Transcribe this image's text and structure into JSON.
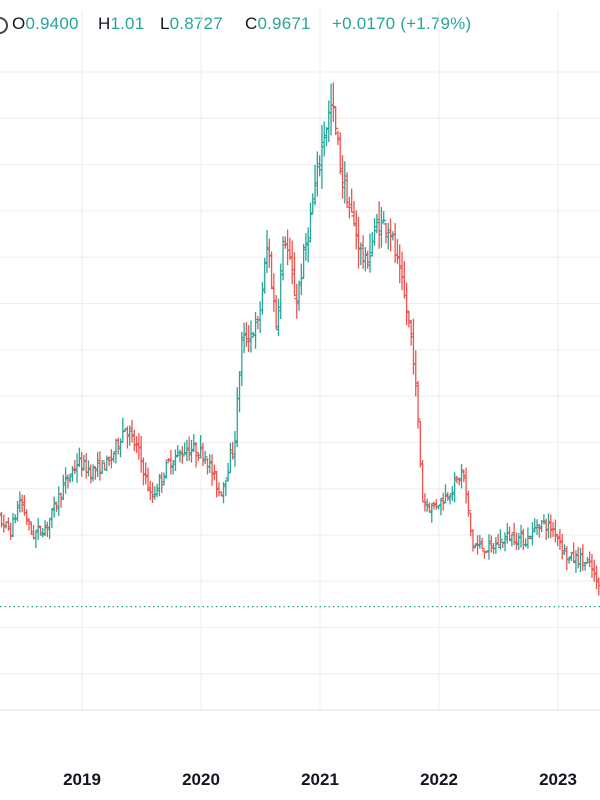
{
  "legend": {
    "open_label": "O",
    "open_value": "0.9400",
    "high_label": "H",
    "high_value": "1.01",
    "low_label": "L",
    "low_value": "0.8727",
    "close_label": "C",
    "close_value": "0.9671",
    "change": "+0.0170 (+1.79%)"
  },
  "colors": {
    "up": "#26a69a",
    "down": "#ef5350",
    "grid": "#eeeeee",
    "axis_text": "#131722"
  },
  "chart_data": {
    "type": "bar",
    "style": "ohlc",
    "interval": "weekly",
    "x_tick_labels": [
      "2019",
      "2020",
      "2021",
      "2022",
      "2023"
    ],
    "x_ticks": [
      2019,
      2020,
      2021,
      2022,
      2023
    ],
    "xlim": [
      2018.17,
      2023.35
    ],
    "ylim": [
      0.25,
      1.65
    ],
    "grid": true,
    "reference_line": {
      "value": 0.385,
      "style": "dotted"
    },
    "anchors": [
      [
        2018.17,
        0.53
      ],
      [
        2018.3,
        0.58
      ],
      [
        2018.42,
        0.55
      ],
      [
        2018.5,
        0.62
      ],
      [
        2018.6,
        0.54
      ],
      [
        2018.72,
        0.56
      ],
      [
        2018.85,
        0.64
      ],
      [
        2018.98,
        0.7
      ],
      [
        2019.1,
        0.68
      ],
      [
        2019.25,
        0.7
      ],
      [
        2019.38,
        0.78
      ],
      [
        2019.5,
        0.72
      ],
      [
        2019.6,
        0.62
      ],
      [
        2019.75,
        0.7
      ],
      [
        2019.9,
        0.73
      ],
      [
        2020.05,
        0.72
      ],
      [
        2020.18,
        0.63
      ],
      [
        2020.3,
        0.74
      ],
      [
        2020.36,
        0.96
      ],
      [
        2020.5,
        1.0
      ],
      [
        2020.58,
        1.18
      ],
      [
        2020.65,
        1.0
      ],
      [
        2020.72,
        1.2
      ],
      [
        2020.82,
        1.05
      ],
      [
        2020.95,
        1.25
      ],
      [
        2021.05,
        1.42
      ],
      [
        2021.12,
        1.48
      ],
      [
        2021.2,
        1.33
      ],
      [
        2021.3,
        1.22
      ],
      [
        2021.4,
        1.13
      ],
      [
        2021.5,
        1.22
      ],
      [
        2021.6,
        1.22
      ],
      [
        2021.72,
        1.07
      ],
      [
        2021.8,
        0.95
      ],
      [
        2021.84,
        0.8
      ],
      [
        2021.88,
        0.62
      ],
      [
        2021.95,
        0.6
      ],
      [
        2022.05,
        0.62
      ],
      [
        2022.15,
        0.65
      ],
      [
        2022.22,
        0.68
      ],
      [
        2022.3,
        0.52
      ],
      [
        2022.45,
        0.51
      ],
      [
        2022.6,
        0.54
      ],
      [
        2022.75,
        0.53
      ],
      [
        2022.87,
        0.57
      ],
      [
        2023.0,
        0.55
      ],
      [
        2023.1,
        0.49
      ],
      [
        2023.2,
        0.49
      ],
      [
        2023.3,
        0.47
      ],
      [
        2023.35,
        0.43
      ]
    ]
  }
}
